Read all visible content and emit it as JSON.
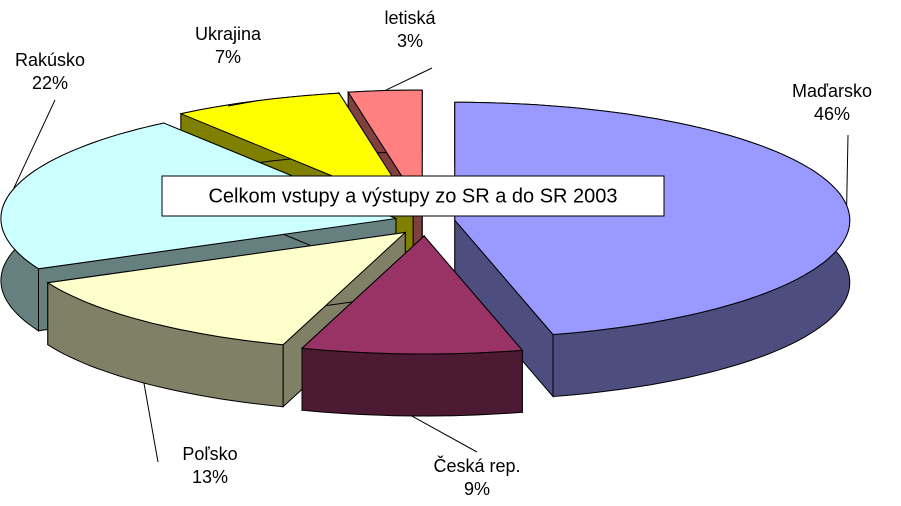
{
  "chart_data": {
    "type": "pie3d",
    "title": "Celkom vstupy a výstupy zo SR a do SR 2003",
    "categories": [
      "Maďarsko",
      "Česká rep.",
      "Poľsko",
      "Rakúsko",
      "Ukrajina",
      "letiská"
    ],
    "values": [
      46,
      9,
      13,
      22,
      7,
      3
    ],
    "value_labels": [
      "46%",
      "9%",
      "13%",
      "22%",
      "7%",
      "3%"
    ],
    "colors": [
      "#9999ff",
      "#993366",
      "#ffffcc",
      "#ccffff",
      "#ffff00",
      "#ff8080"
    ]
  }
}
